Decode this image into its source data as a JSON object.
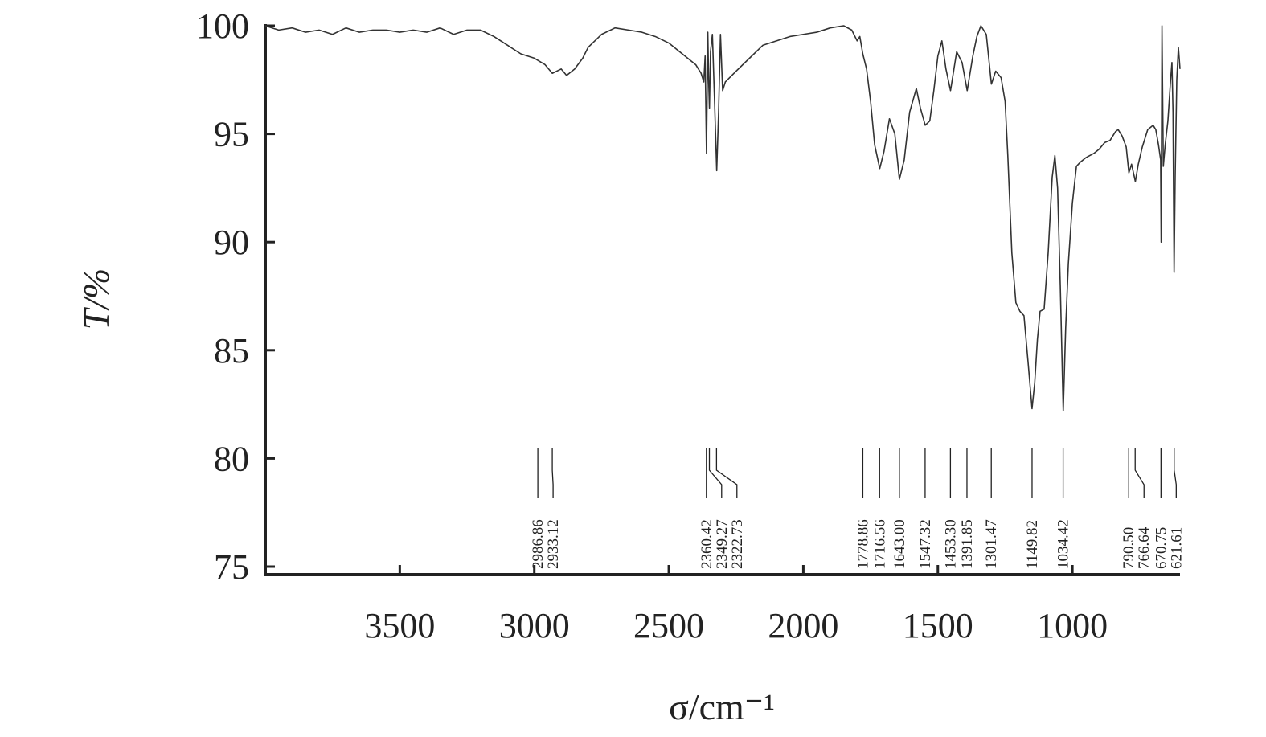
{
  "chart_data": {
    "type": "line",
    "x_label": "σ/cm⁻¹",
    "y_label": "T/%",
    "xlim": [
      4000,
      600
    ],
    "ylim": [
      75,
      100
    ],
    "xticks": [
      3500,
      3000,
      2500,
      2000,
      1500,
      1000
    ],
    "yticks": [
      75,
      80,
      85,
      90,
      95,
      100
    ],
    "peaks": [
      2986.86,
      2933.12,
      2360.42,
      2349.27,
      2322.73,
      1778.86,
      1716.56,
      {
        "value": 1643,
        "label": "1643.00"
      },
      1547.32,
      {
        "value": 1453.3,
        "label": "1453.30"
      },
      1391.85,
      1301.47,
      1149.82,
      1034.42,
      {
        "value": 790.5,
        "label": "790.50"
      },
      766.64,
      670.75,
      621.61
    ],
    "series": [
      {
        "color": "#333333",
        "x": [
          4000,
          3950,
          3900,
          3850,
          3800,
          3750,
          3700,
          3650,
          3600,
          3550,
          3500,
          3450,
          3400,
          3350,
          3300,
          3250,
          3200,
          3150,
          3100,
          3050,
          3000,
          2960,
          2933,
          2900,
          2880,
          2850,
          2820,
          2800,
          2750,
          2700,
          2650,
          2600,
          2550,
          2500,
          2450,
          2400,
          2380,
          2370,
          2365,
          2360,
          2355,
          2352,
          2349,
          2345,
          2338,
          2330,
          2322,
          2315,
          2308,
          2300,
          2290,
          2250,
          2200,
          2150,
          2100,
          2050,
          2000,
          1950,
          1900,
          1850,
          1820,
          1800,
          1790,
          1779,
          1765,
          1750,
          1735,
          1716,
          1700,
          1680,
          1660,
          1643,
          1625,
          1605,
          1580,
          1565,
          1547,
          1530,
          1515,
          1500,
          1485,
          1470,
          1453,
          1430,
          1410,
          1391,
          1370,
          1355,
          1340,
          1320,
          1301,
          1285,
          1265,
          1250,
          1240,
          1225,
          1210,
          1195,
          1180,
          1165,
          1150,
          1140,
          1130,
          1120,
          1105,
          1090,
          1075,
          1065,
          1055,
          1045,
          1034,
          1025,
          1015,
          1000,
          985,
          970,
          950,
          920,
          900,
          880,
          860,
          840,
          830,
          815,
          800,
          790,
          780,
          766,
          755,
          740,
          720,
          700,
          690,
          680,
          672,
          670,
          667,
          662,
          655,
          645,
          635,
          630,
          626,
          622,
          618,
          612,
          606,
          600
        ],
        "values": [
          100.0,
          99.8,
          99.9,
          99.7,
          99.8,
          99.6,
          99.9,
          99.7,
          99.8,
          99.8,
          99.7,
          99.8,
          99.7,
          99.9,
          99.6,
          99.8,
          99.8,
          99.5,
          99.1,
          98.7,
          98.5,
          98.2,
          97.8,
          98.0,
          97.7,
          98.0,
          98.5,
          99.0,
          99.6,
          99.9,
          99.8,
          99.7,
          99.5,
          99.2,
          98.7,
          98.2,
          97.8,
          97.4,
          98.6,
          94.1,
          99.7,
          97.5,
          96.2,
          98.8,
          99.6,
          96.5,
          93.3,
          96.0,
          99.6,
          97.0,
          97.4,
          97.9,
          98.5,
          99.1,
          99.3,
          99.5,
          99.6,
          99.7,
          99.9,
          100.0,
          99.8,
          99.3,
          99.5,
          98.7,
          98.0,
          96.5,
          94.5,
          93.4,
          94.2,
          95.7,
          95.0,
          92.9,
          93.8,
          96.0,
          97.1,
          96.2,
          95.4,
          95.6,
          97.0,
          98.6,
          99.3,
          98.0,
          97.0,
          98.8,
          98.3,
          97.0,
          98.6,
          99.5,
          100.0,
          99.6,
          97.3,
          97.9,
          97.6,
          96.5,
          94.0,
          89.5,
          87.2,
          86.8,
          86.6,
          84.5,
          82.3,
          83.5,
          85.5,
          86.8,
          86.9,
          89.5,
          93.0,
          94.0,
          92.5,
          88.0,
          82.2,
          86.0,
          89.0,
          91.8,
          93.5,
          93.7,
          93.9,
          94.1,
          94.3,
          94.6,
          94.7,
          95.1,
          95.2,
          94.9,
          94.4,
          93.2,
          93.6,
          92.8,
          93.6,
          94.4,
          95.2,
          95.4,
          95.2,
          94.5,
          93.8,
          90.0,
          100.0,
          93.5,
          94.5,
          95.6,
          97.5,
          98.3,
          96.0,
          88.6,
          93.0,
          97.5,
          99.0,
          98.0
        ]
      }
    ]
  }
}
